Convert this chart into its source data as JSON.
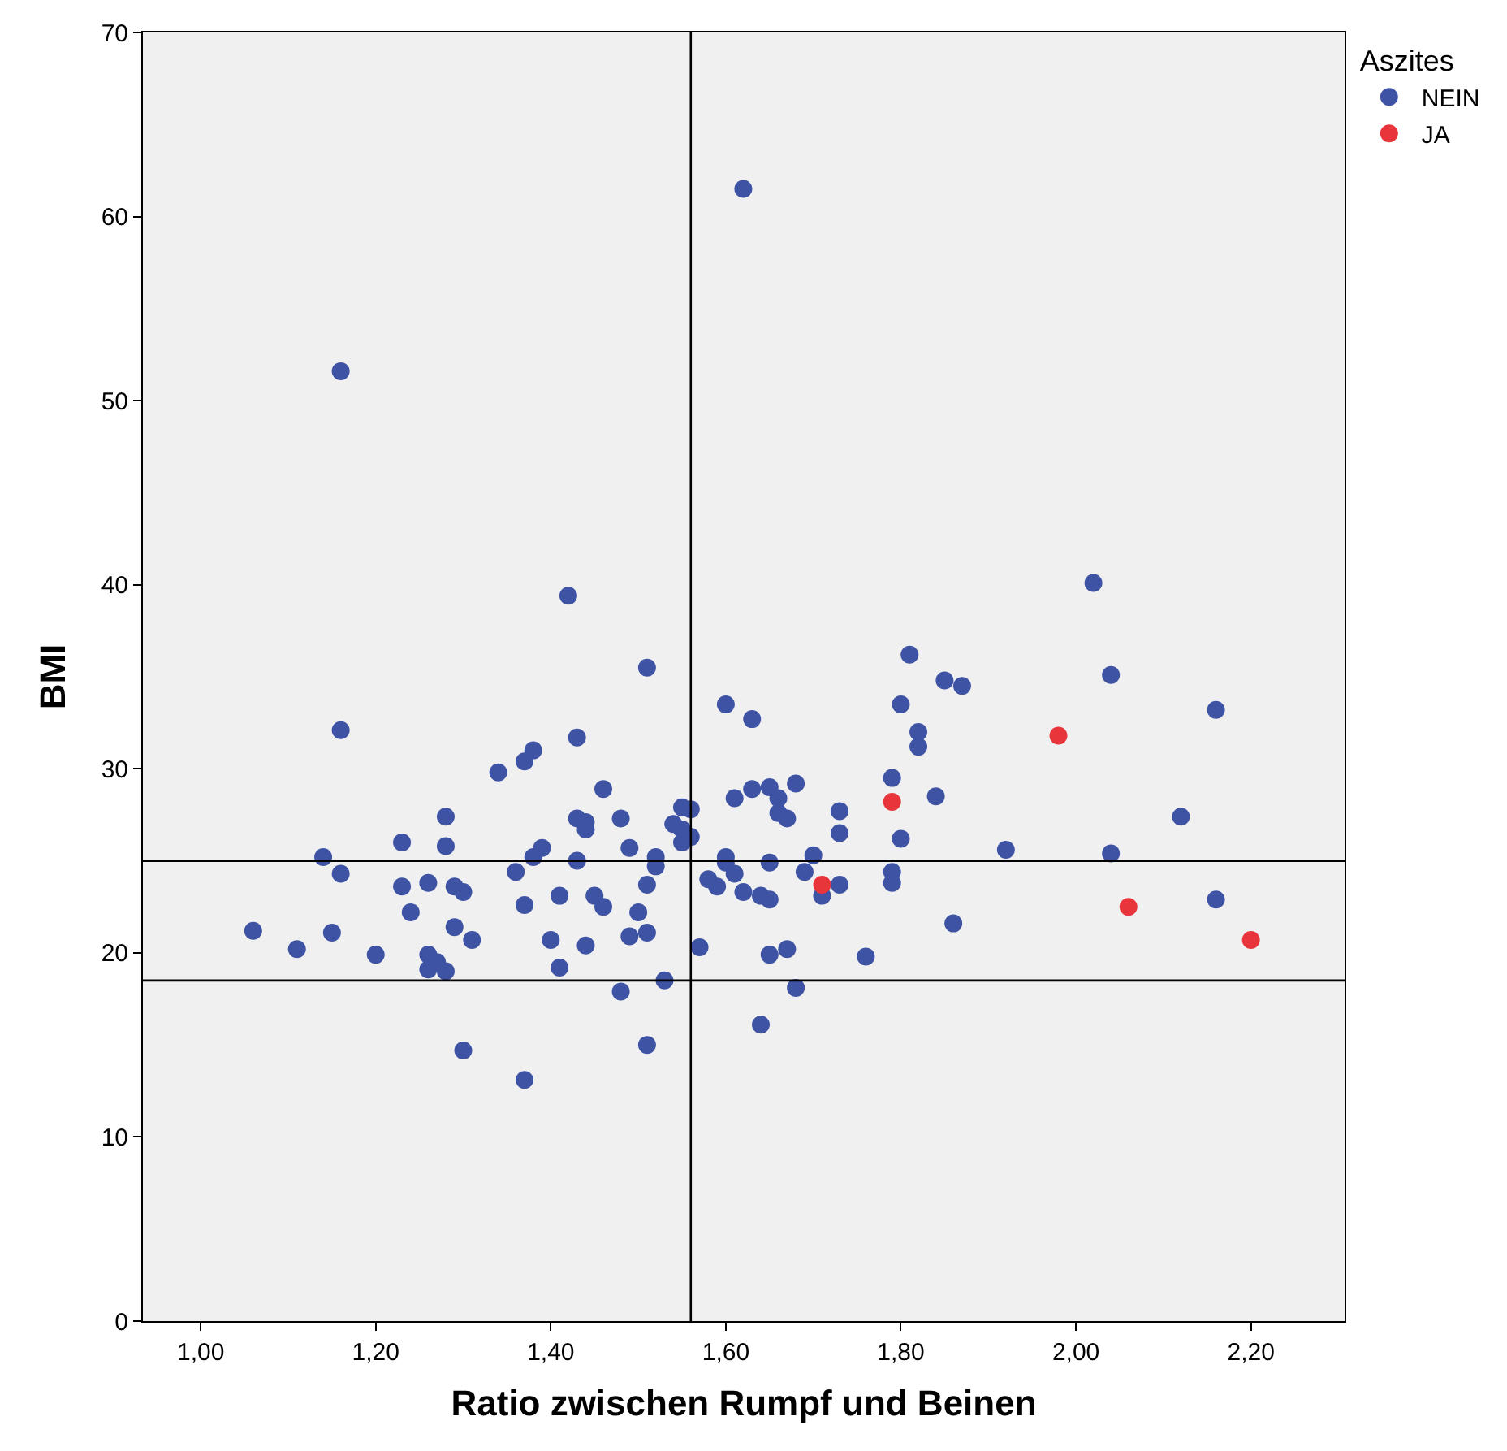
{
  "chart_data": {
    "type": "scatter",
    "xlabel": "Ratio zwischen Rumpf und Beinen",
    "ylabel": "BMI",
    "legend_title": "Aszites",
    "legend": "top right",
    "grid": false,
    "marker": "circle",
    "xlim": [
      0.934,
      2.307
    ],
    "ylim": [
      0,
      70
    ],
    "xticks": [
      {
        "value": 1.0,
        "label": "1,00"
      },
      {
        "value": 1.2,
        "label": "1,20"
      },
      {
        "value": 1.4,
        "label": "1,40"
      },
      {
        "value": 1.6,
        "label": "1,60"
      },
      {
        "value": 1.8,
        "label": "1,80"
      },
      {
        "value": 2.0,
        "label": "2,00"
      },
      {
        "value": 2.2,
        "label": "2,20"
      }
    ],
    "yticks": [
      0,
      10,
      20,
      30,
      40,
      50,
      60,
      70
    ],
    "ref_lines": [
      {
        "axis": "x",
        "value": 1.56,
        "label": null,
        "color": "#000000"
      },
      {
        "axis": "y",
        "value": 25,
        "label": null,
        "color": "#000000"
      },
      {
        "axis": "y",
        "value": 18.5,
        "label": null,
        "color": "#000000"
      }
    ],
    "series": [
      {
        "name": "NEIN",
        "color": "#3e53a4",
        "x": [
          1.06,
          1.11,
          1.15,
          1.14,
          1.16,
          1.16,
          1.16,
          1.2,
          1.23,
          1.23,
          1.24,
          1.26,
          1.26,
          1.26,
          1.27,
          1.28,
          1.28,
          1.28,
          1.29,
          1.29,
          1.3,
          1.3,
          1.31,
          1.34,
          1.36,
          1.37,
          1.37,
          1.38,
          1.38,
          1.37,
          1.39,
          1.4,
          1.41,
          1.42,
          1.41,
          1.43,
          1.43,
          1.43,
          1.44,
          1.44,
          1.44,
          1.45,
          1.46,
          1.46,
          1.48,
          1.48,
          1.49,
          1.49,
          1.5,
          1.51,
          1.51,
          1.51,
          1.51,
          1.52,
          1.52,
          1.53,
          1.54,
          1.55,
          1.55,
          1.55,
          1.56,
          1.56,
          1.57,
          1.58,
          1.59,
          1.6,
          1.6,
          1.6,
          1.61,
          1.61,
          1.62,
          1.62,
          1.63,
          1.63,
          1.64,
          1.64,
          1.65,
          1.65,
          1.65,
          1.65,
          1.66,
          1.66,
          1.67,
          1.67,
          1.68,
          1.68,
          1.69,
          1.7,
          1.73,
          1.73,
          1.73,
          1.71,
          1.76,
          1.79,
          1.79,
          1.79,
          1.8,
          1.8,
          1.81,
          1.82,
          1.82,
          1.84,
          1.85,
          1.86,
          1.87,
          1.92,
          2.02,
          2.04,
          2.04,
          2.12,
          2.16,
          2.16
        ],
        "values": [
          21.2,
          20.2,
          21.1,
          25.2,
          51.6,
          32.1,
          24.3,
          19.9,
          26.0,
          23.6,
          22.2,
          23.8,
          19.9,
          19.1,
          19.5,
          19.0,
          25.8,
          27.4,
          23.6,
          21.4,
          23.3,
          14.7,
          20.7,
          29.8,
          24.4,
          22.6,
          30.4,
          31.0,
          25.2,
          13.1,
          25.7,
          20.7,
          19.2,
          39.4,
          23.1,
          27.3,
          31.7,
          25.0,
          27.1,
          26.7,
          20.4,
          23.1,
          22.5,
          28.9,
          27.3,
          17.9,
          25.7,
          20.9,
          22.2,
          21.1,
          23.7,
          15.0,
          35.5,
          25.2,
          24.7,
          18.5,
          27.0,
          27.9,
          26.0,
          26.7,
          27.8,
          26.3,
          20.3,
          24.0,
          23.6,
          24.9,
          25.2,
          33.5,
          28.4,
          24.3,
          61.5,
          23.3,
          28.9,
          32.7,
          16.1,
          23.1,
          29.0,
          19.9,
          24.9,
          22.9,
          28.4,
          27.6,
          27.3,
          20.2,
          18.1,
          29.2,
          24.4,
          25.3,
          26.5,
          23.7,
          27.7,
          23.1,
          19.8,
          29.5,
          24.4,
          23.8,
          33.5,
          26.2,
          36.2,
          31.2,
          32.0,
          28.5,
          34.8,
          21.6,
          34.5,
          25.6,
          40.1,
          35.1,
          25.4,
          27.4,
          33.2,
          22.9
        ]
      },
      {
        "name": "JA",
        "color": "#e8343b",
        "x": [
          1.79,
          1.71,
          1.98,
          2.06,
          2.2
        ],
        "values": [
          28.2,
          23.7,
          31.8,
          22.5,
          20.7
        ]
      }
    ]
  }
}
